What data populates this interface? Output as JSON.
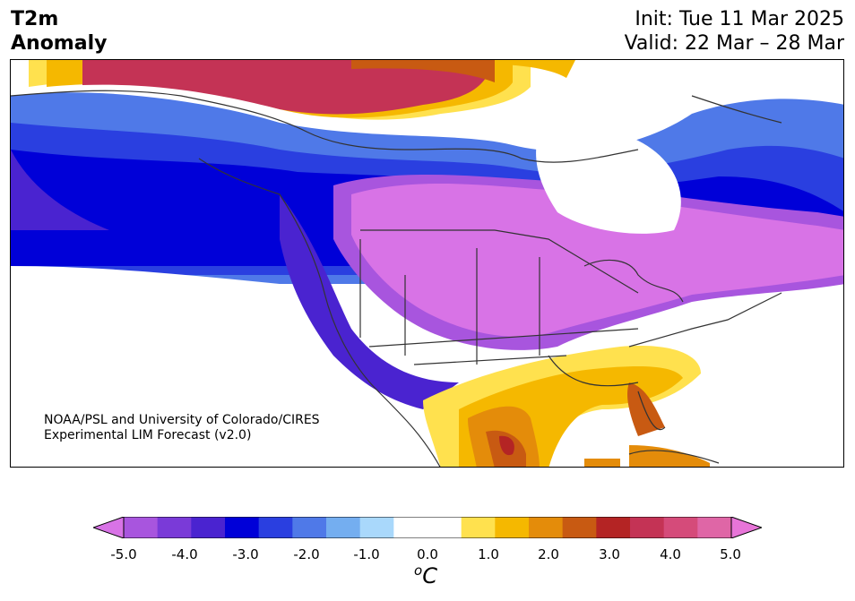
{
  "header": {
    "title_line1": "T2m",
    "title_line2": "Anomaly",
    "init": "Init: Tue 11 Mar 2025",
    "valid": "Valid: 22 Mar – 28 Mar"
  },
  "credit": {
    "line1": "NOAA/PSL and University of Colorado/CIRES",
    "line2": "Experimental LIM Forecast (v2.0)"
  },
  "colorbar": {
    "tick_labels": [
      "-5.0",
      "-4.0",
      "-3.0",
      "-2.0",
      "-1.0",
      "0.0",
      "1.0",
      "2.0",
      "3.0",
      "4.0",
      "5.0"
    ],
    "units_base": "C",
    "units_sup": "o",
    "colors": [
      "#d873e6",
      "#a855de",
      "#7a3ad8",
      "#4a23d0",
      "#0000d8",
      "#2a3fe0",
      "#4f79e8",
      "#74aef0",
      "#a9d8fb",
      "#ffffff",
      "#ffffff",
      "#ffe14e",
      "#f5b800",
      "#e48c0a",
      "#c85a12",
      "#b42424",
      "#c43355",
      "#d54b7a",
      "#df66a6",
      "#e775d8"
    ]
  },
  "colors": {
    "extreme_cold": "#d873e6",
    "cold": "#0000d8",
    "neutral": "#ffffff",
    "warm": "#f5b800",
    "extreme_warm": "#c43355",
    "coastline": "#333333"
  }
}
